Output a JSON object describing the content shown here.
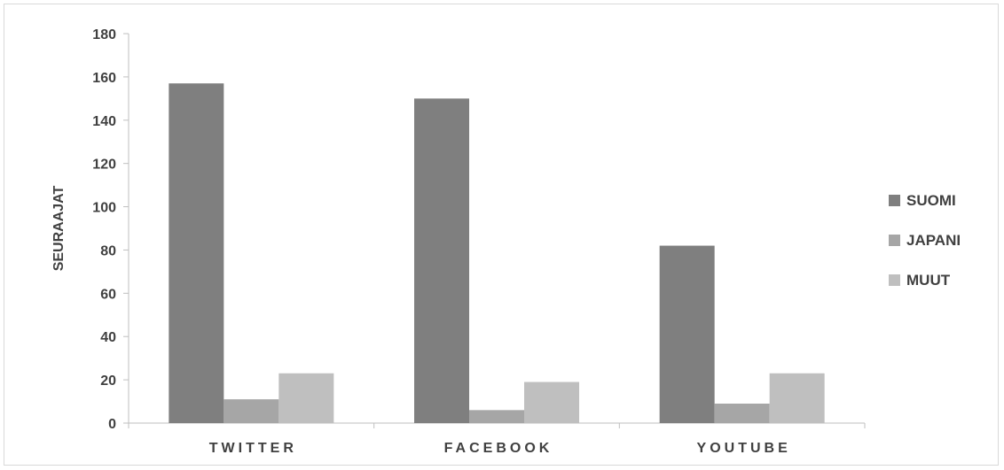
{
  "chart_data": {
    "type": "bar",
    "title": "",
    "xlabel": "",
    "ylabel": "SEURAAJAT",
    "categories": [
      "TWITTER",
      "FACEBOOK",
      "YOUTUBE"
    ],
    "series": [
      {
        "name": "SUOMI",
        "values": [
          157,
          150,
          82
        ],
        "color": "#7f7f7f"
      },
      {
        "name": "JAPANI",
        "values": [
          11,
          6,
          9
        ],
        "color": "#a6a6a6"
      },
      {
        "name": "MUUT",
        "values": [
          23,
          19,
          23
        ],
        "color": "#bfbfbf"
      }
    ],
    "ylim": [
      0,
      180
    ],
    "yticks": [
      0,
      20,
      40,
      60,
      80,
      100,
      120,
      140,
      160,
      180
    ],
    "grid": false,
    "legend": "right"
  }
}
